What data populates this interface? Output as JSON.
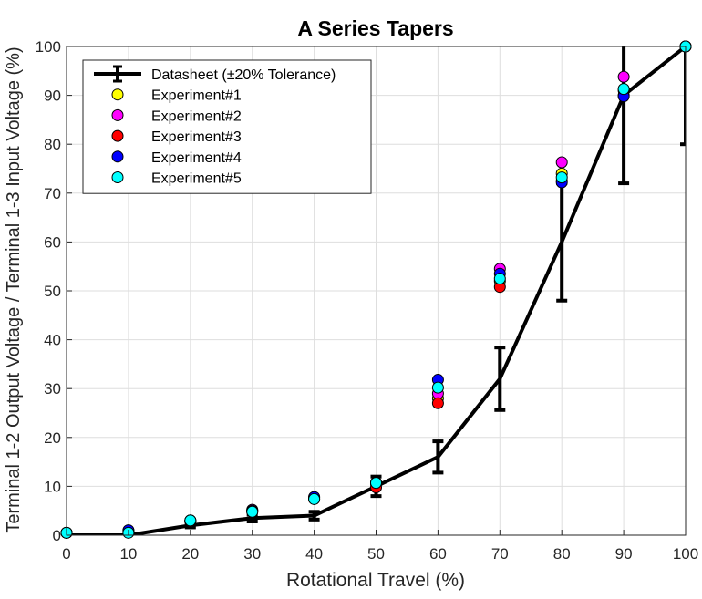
{
  "chart_data": {
    "type": "line",
    "title": "A Series Tapers",
    "xlabel": "Rotational Travel (%)",
    "ylabel": "Terminal 1-2 Output Voltage / Terminal 1-3 Input Voltage (%)",
    "xlim": [
      0,
      100
    ],
    "ylim": [
      0,
      100
    ],
    "xticks": [
      0,
      10,
      20,
      30,
      40,
      50,
      60,
      70,
      80,
      90,
      100
    ],
    "yticks": [
      0,
      10,
      20,
      30,
      40,
      50,
      60,
      70,
      80,
      90,
      100
    ],
    "grid": true,
    "legend_position": "top-left",
    "x": [
      0,
      10,
      20,
      30,
      40,
      50,
      60,
      70,
      80,
      90,
      100
    ],
    "datasheet": {
      "name": "Datasheet (±20% Tolerance)",
      "color": "#000000",
      "values": [
        0,
        0,
        2,
        3.5,
        4,
        10,
        16,
        32,
        60,
        90,
        100
      ],
      "error_pct": 20
    },
    "experiments": [
      {
        "name": "Experiment#1",
        "color": "#ffff00",
        "values": [
          0.5,
          0.7,
          3.0,
          5.0,
          7.5,
          10.5,
          28.0,
          52.0,
          74.0,
          91.0,
          100.0
        ]
      },
      {
        "name": "Experiment#2",
        "color": "#ff00ff",
        "values": [
          0.5,
          0.9,
          3.0,
          5.2,
          7.8,
          10.7,
          29.0,
          54.5,
          76.3,
          93.8,
          100.0
        ]
      },
      {
        "name": "Experiment#3",
        "color": "#ff0000",
        "values": [
          0.5,
          0.6,
          2.8,
          4.8,
          7.4,
          9.8,
          27.0,
          50.8,
          72.5,
          90.0,
          100.0
        ]
      },
      {
        "name": "Experiment#4",
        "color": "#0000ff",
        "values": [
          0.5,
          1.0,
          3.0,
          5.0,
          7.8,
          10.8,
          31.8,
          53.5,
          72.2,
          89.8,
          100.0
        ]
      },
      {
        "name": "Experiment#5",
        "color": "#00ffff",
        "values": [
          0.5,
          0.5,
          3.0,
          4.8,
          7.4,
          10.7,
          30.2,
          52.5,
          73.2,
          91.3,
          100.0
        ]
      }
    ]
  }
}
